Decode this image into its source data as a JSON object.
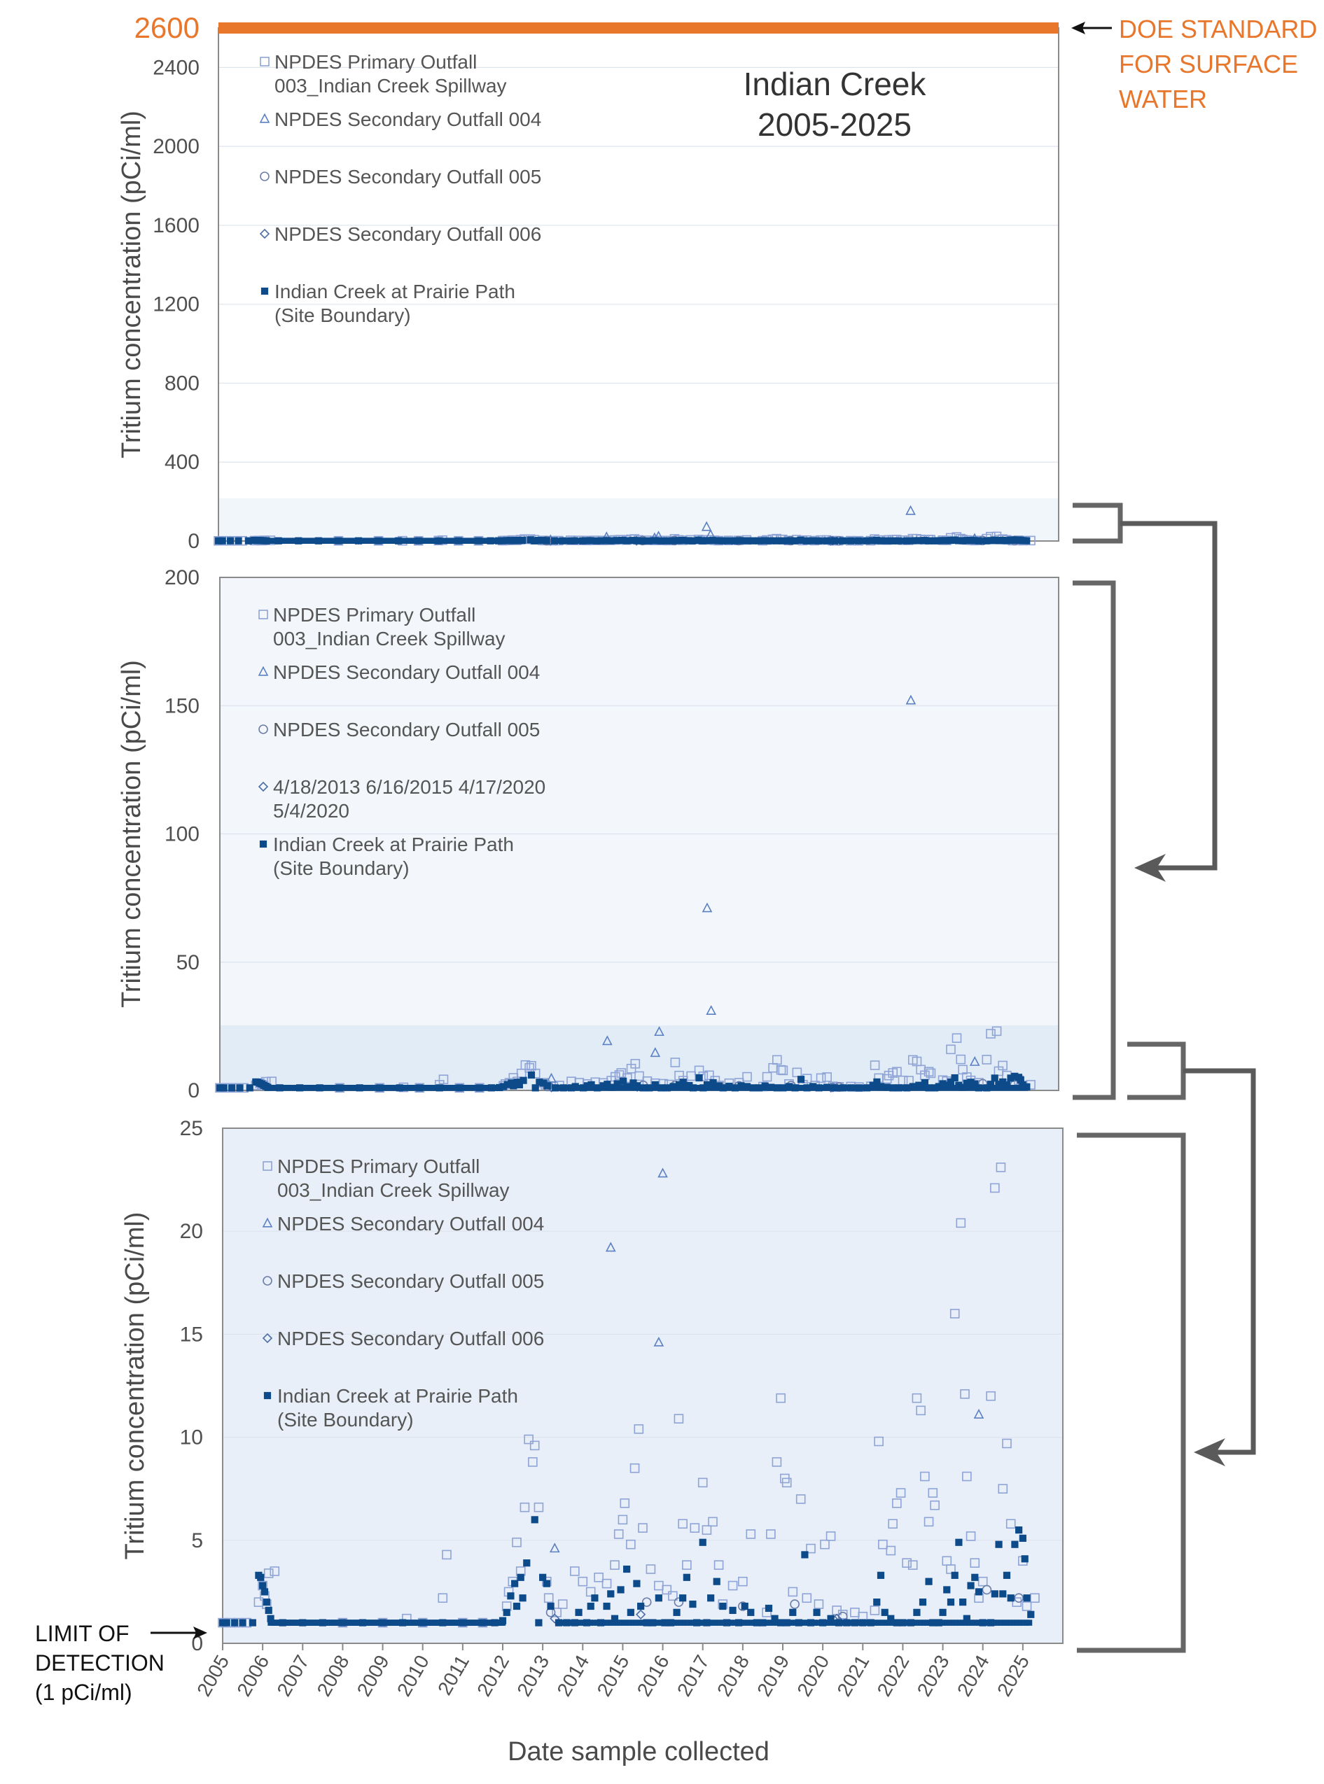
{
  "colors": {
    "standard_line": "#E8762B",
    "primary_outfall": "#8EA3D6",
    "outfall_004": "#5B80C2",
    "outfall_005": "#6B7DA8",
    "outfall_006": "#4C6CA8",
    "prairie_path": "#0D4A8A",
    "inset_fill": "#E8EFF8",
    "connector": "#5a5a5a"
  },
  "annotations": {
    "doe_standard": [
      "DOE STANDARD",
      "FOR SURFACE",
      "WATER"
    ],
    "limit_of_detection": [
      "LIMIT OF",
      "DETECTION",
      "(1 pCi/ml)"
    ]
  },
  "chart_data": [
    {
      "type": "scatter",
      "title_lines": [
        "Indian Creek",
        "2005-2025"
      ],
      "ylabel": "Tritium concentration (pCi/ml)",
      "ylim": [
        0,
        2600
      ],
      "yticks": [
        "0",
        "400",
        "800",
        "1200",
        "1600",
        "2000",
        "2400",
        "2600"
      ],
      "reference_line": {
        "value": 2600,
        "label": "2600"
      },
      "legend": [
        {
          "series": "primary",
          "lines": [
            "NPDES Primary Outfall",
            "003_Indian Creek Spillway"
          ]
        },
        {
          "series": "o004",
          "lines": [
            "NPDES Secondary Outfall 004"
          ]
        },
        {
          "series": "o005",
          "lines": [
            "NPDES Secondary Outfall 005"
          ]
        },
        {
          "series": "o006",
          "lines": [
            "NPDES Secondary Outfall 006"
          ]
        },
        {
          "series": "prairie",
          "lines": [
            "Indian Creek at Prairie Path",
            "(Site Boundary)"
          ]
        }
      ]
    },
    {
      "type": "scatter",
      "ylabel": "Tritium concentration (pCi/ml)",
      "ylim": [
        0,
        200
      ],
      "yticks": [
        "0",
        "50",
        "100",
        "150",
        "200"
      ],
      "legend": [
        {
          "series": "primary",
          "lines": [
            "NPDES Primary Outfall",
            "003_Indian Creek Spillway"
          ]
        },
        {
          "series": "o004",
          "lines": [
            "NPDES Secondary Outfall 004"
          ]
        },
        {
          "series": "o005",
          "lines": [
            "NPDES Secondary Outfall 005"
          ]
        },
        {
          "series": "o006",
          "lines": [
            "4/18/2013 6/16/2015 4/17/2020",
            "5/4/2020"
          ]
        },
        {
          "series": "prairie",
          "lines": [
            "Indian Creek at Prairie Path",
            "(Site Boundary)"
          ]
        }
      ]
    },
    {
      "type": "scatter",
      "ylabel": "Tritium concentration (pCi/ml)",
      "xlabel": "Date sample collected",
      "ylim": [
        0,
        25
      ],
      "yticks": [
        "0",
        "5",
        "10",
        "15",
        "20",
        "25"
      ],
      "xlim": [
        2005,
        2026
      ],
      "xticks": [
        "2005",
        "2006",
        "2007",
        "2008",
        "2009",
        "2010",
        "2011",
        "2012",
        "2013",
        "2014",
        "2015",
        "2016",
        "2017",
        "2018",
        "2019",
        "2020",
        "2021",
        "2022",
        "2023",
        "2024",
        "2025"
      ],
      "legend": [
        {
          "series": "primary",
          "lines": [
            "NPDES Primary Outfall",
            "003_Indian Creek Spillway"
          ]
        },
        {
          "series": "o004",
          "lines": [
            "NPDES Secondary Outfall 004"
          ]
        },
        {
          "series": "o005",
          "lines": [
            "NPDES Secondary Outfall 005"
          ]
        },
        {
          "series": "o006",
          "lines": [
            "NPDES Secondary Outfall 006"
          ]
        },
        {
          "series": "prairie",
          "lines": [
            "Indian Creek at Prairie Path",
            "(Site Boundary)"
          ]
        }
      ]
    }
  ],
  "series": {
    "o004": [
      [
        2013.3,
        4.6
      ],
      [
        2014.7,
        19.2
      ],
      [
        2015.9,
        14.6
      ],
      [
        2016.0,
        22.8
      ],
      [
        2017.2,
        71
      ],
      [
        2017.3,
        31
      ],
      [
        2022.3,
        152
      ],
      [
        2023.9,
        11.1
      ]
    ],
    "o005": [
      [
        2013.2,
        1.5
      ],
      [
        2015.6,
        2.0
      ],
      [
        2016.4,
        2.0
      ],
      [
        2018.0,
        1.8
      ],
      [
        2019.3,
        1.9
      ],
      [
        2020.5,
        1.3
      ],
      [
        2024.1,
        2.6
      ],
      [
        2024.9,
        2.2
      ]
    ],
    "o006": [
      [
        2013.3,
        1.2
      ],
      [
        2015.45,
        1.4
      ],
      [
        2020.3,
        1.1
      ],
      [
        2020.35,
        1.2
      ]
    ],
    "primary": [
      [
        2005.0,
        1.0
      ],
      [
        2005.2,
        1.0
      ],
      [
        2005.4,
        1.0
      ],
      [
        2005.6,
        1.0
      ],
      [
        2005.9,
        2.0
      ],
      [
        2006.0,
        2.8
      ],
      [
        2006.05,
        2.3
      ],
      [
        2006.1,
        1.9
      ],
      [
        2006.15,
        3.4
      ],
      [
        2006.3,
        3.5
      ],
      [
        2008.0,
        1.0
      ],
      [
        2009.0,
        1.0
      ],
      [
        2009.6,
        1.2
      ],
      [
        2010.0,
        1.0
      ],
      [
        2010.5,
        2.2
      ],
      [
        2010.6,
        4.3
      ],
      [
        2011.0,
        1.0
      ],
      [
        2011.5,
        1.0
      ],
      [
        2012.1,
        1.8
      ],
      [
        2012.15,
        2.5
      ],
      [
        2012.25,
        3.0
      ],
      [
        2012.35,
        4.9
      ],
      [
        2012.45,
        3.5
      ],
      [
        2012.55,
        6.6
      ],
      [
        2012.65,
        9.9
      ],
      [
        2012.75,
        8.8
      ],
      [
        2012.8,
        9.6
      ],
      [
        2012.9,
        6.6
      ],
      [
        2013.1,
        3.0
      ],
      [
        2013.15,
        2.2
      ],
      [
        2013.35,
        1.5
      ],
      [
        2013.5,
        1.9
      ],
      [
        2013.8,
        3.5
      ],
      [
        2014.0,
        3.0
      ],
      [
        2014.2,
        2.5
      ],
      [
        2014.4,
        3.2
      ],
      [
        2014.6,
        2.9
      ],
      [
        2014.8,
        3.8
      ],
      [
        2014.9,
        5.3
      ],
      [
        2015.0,
        6.0
      ],
      [
        2015.05,
        6.8
      ],
      [
        2015.2,
        4.8
      ],
      [
        2015.3,
        8.5
      ],
      [
        2015.4,
        10.4
      ],
      [
        2015.5,
        5.6
      ],
      [
        2015.7,
        3.6
      ],
      [
        2015.9,
        2.8
      ],
      [
        2016.1,
        2.6
      ],
      [
        2016.25,
        2.3
      ],
      [
        2016.4,
        10.9
      ],
      [
        2016.5,
        5.8
      ],
      [
        2016.6,
        3.8
      ],
      [
        2016.8,
        5.6
      ],
      [
        2017.0,
        7.8
      ],
      [
        2017.1,
        5.5
      ],
      [
        2017.25,
        5.9
      ],
      [
        2017.4,
        3.8
      ],
      [
        2017.5,
        1.9
      ],
      [
        2017.75,
        2.8
      ],
      [
        2018.0,
        3.0
      ],
      [
        2018.2,
        5.3
      ],
      [
        2018.6,
        1.5
      ],
      [
        2018.7,
        5.3
      ],
      [
        2018.85,
        8.8
      ],
      [
        2018.95,
        11.9
      ],
      [
        2019.05,
        8.0
      ],
      [
        2019.1,
        7.8
      ],
      [
        2019.25,
        2.5
      ],
      [
        2019.45,
        7.0
      ],
      [
        2019.6,
        2.2
      ],
      [
        2019.7,
        4.6
      ],
      [
        2019.9,
        1.9
      ],
      [
        2020.05,
        4.8
      ],
      [
        2020.2,
        5.2
      ],
      [
        2020.35,
        1.6
      ],
      [
        2020.5,
        1.4
      ],
      [
        2020.8,
        1.5
      ],
      [
        2021.0,
        1.3
      ],
      [
        2021.3,
        1.6
      ],
      [
        2021.4,
        9.8
      ],
      [
        2021.5,
        4.8
      ],
      [
        2021.7,
        4.5
      ],
      [
        2021.75,
        5.8
      ],
      [
        2021.85,
        6.8
      ],
      [
        2021.95,
        7.3
      ],
      [
        2022.1,
        3.9
      ],
      [
        2022.25,
        3.8
      ],
      [
        2022.35,
        11.9
      ],
      [
        2022.45,
        11.3
      ],
      [
        2022.55,
        8.1
      ],
      [
        2022.65,
        5.9
      ],
      [
        2022.75,
        7.3
      ],
      [
        2022.8,
        6.7
      ],
      [
        2023.1,
        4.0
      ],
      [
        2023.2,
        3.6
      ],
      [
        2023.3,
        16.0
      ],
      [
        2023.45,
        20.4
      ],
      [
        2023.55,
        12.1
      ],
      [
        2023.6,
        8.1
      ],
      [
        2023.7,
        5.2
      ],
      [
        2023.8,
        3.9
      ],
      [
        2023.9,
        2.2
      ],
      [
        2024.0,
        3.0
      ],
      [
        2024.2,
        12.0
      ],
      [
        2024.3,
        22.1
      ],
      [
        2024.45,
        23.1
      ],
      [
        2024.5,
        7.5
      ],
      [
        2024.6,
        9.7
      ],
      [
        2024.7,
        5.8
      ],
      [
        2024.85,
        2.0
      ],
      [
        2025.0,
        4.0
      ],
      [
        2025.1,
        1.8
      ],
      [
        2025.3,
        2.2
      ]
    ],
    "prairie": [
      [
        2005.0,
        1.0
      ],
      [
        2005.1,
        1.0
      ],
      [
        2005.3,
        1.0
      ],
      [
        2005.5,
        1.0
      ],
      [
        2005.75,
        1.0
      ],
      [
        2005.9,
        3.3
      ],
      [
        2005.95,
        3.2
      ],
      [
        2006.0,
        2.8
      ],
      [
        2006.05,
        2.5
      ],
      [
        2006.1,
        2.0
      ],
      [
        2006.15,
        1.6
      ],
      [
        2006.2,
        1.2
      ],
      [
        2006.5,
        1.0
      ],
      [
        2007.0,
        1.0
      ],
      [
        2007.5,
        1.0
      ],
      [
        2008.0,
        1.0
      ],
      [
        2008.5,
        1.0
      ],
      [
        2009.0,
        1.0
      ],
      [
        2009.5,
        1.0
      ],
      [
        2010.0,
        1.0
      ],
      [
        2010.5,
        1.0
      ],
      [
        2011.0,
        1.0
      ],
      [
        2011.5,
        1.0
      ],
      [
        2011.8,
        1.0
      ],
      [
        2012.0,
        1.1
      ],
      [
        2012.1,
        1.5
      ],
      [
        2012.2,
        2.3
      ],
      [
        2012.3,
        2.9
      ],
      [
        2012.35,
        1.8
      ],
      [
        2012.45,
        3.2
      ],
      [
        2012.5,
        2.2
      ],
      [
        2012.6,
        3.9
      ],
      [
        2012.8,
        6.0
      ],
      [
        2012.9,
        1.0
      ],
      [
        2013.0,
        3.2
      ],
      [
        2013.1,
        2.9
      ],
      [
        2013.2,
        1.8
      ],
      [
        2013.4,
        1.0
      ],
      [
        2013.6,
        1.0
      ],
      [
        2013.8,
        1.0
      ],
      [
        2013.9,
        1.5
      ],
      [
        2014.1,
        1.0
      ],
      [
        2014.2,
        1.8
      ],
      [
        2014.3,
        2.2
      ],
      [
        2014.45,
        1.0
      ],
      [
        2014.6,
        1.8
      ],
      [
        2014.7,
        2.4
      ],
      [
        2014.8,
        1.2
      ],
      [
        2014.95,
        2.6
      ],
      [
        2015.1,
        3.6
      ],
      [
        2015.2,
        1.5
      ],
      [
        2015.35,
        2.9
      ],
      [
        2015.45,
        1.8
      ],
      [
        2015.6,
        1.0
      ],
      [
        2015.75,
        1.0
      ],
      [
        2015.9,
        2.2
      ],
      [
        2016.05,
        1.0
      ],
      [
        2016.2,
        1.0
      ],
      [
        2016.35,
        1.5
      ],
      [
        2016.5,
        2.2
      ],
      [
        2016.6,
        3.2
      ],
      [
        2016.75,
        1.9
      ],
      [
        2016.85,
        1.0
      ],
      [
        2017.0,
        4.9
      ],
      [
        2017.1,
        1.0
      ],
      [
        2017.2,
        2.2
      ],
      [
        2017.35,
        3.0
      ],
      [
        2017.5,
        1.8
      ],
      [
        2017.6,
        1.0
      ],
      [
        2017.75,
        1.6
      ],
      [
        2017.9,
        1.0
      ],
      [
        2018.05,
        1.8
      ],
      [
        2018.2,
        1.5
      ],
      [
        2018.35,
        1.0
      ],
      [
        2018.5,
        1.0
      ],
      [
        2018.65,
        1.7
      ],
      [
        2018.8,
        1.2
      ],
      [
        2018.95,
        1.0
      ],
      [
        2019.1,
        1.0
      ],
      [
        2019.25,
        1.5
      ],
      [
        2019.4,
        1.0
      ],
      [
        2019.55,
        4.3
      ],
      [
        2019.7,
        1.0
      ],
      [
        2019.85,
        1.5
      ],
      [
        2020.0,
        1.0
      ],
      [
        2020.2,
        1.2
      ],
      [
        2020.4,
        1.0
      ],
      [
        2020.6,
        1.0
      ],
      [
        2020.8,
        1.0
      ],
      [
        2021.0,
        1.0
      ],
      [
        2021.2,
        1.0
      ],
      [
        2021.35,
        2.0
      ],
      [
        2021.45,
        3.3
      ],
      [
        2021.55,
        1.5
      ],
      [
        2021.7,
        1.2
      ],
      [
        2021.85,
        1.0
      ],
      [
        2022.0,
        1.0
      ],
      [
        2022.2,
        1.0
      ],
      [
        2022.35,
        1.5
      ],
      [
        2022.5,
        2.0
      ],
      [
        2022.65,
        3.0
      ],
      [
        2022.75,
        1.0
      ],
      [
        2022.9,
        1.0
      ],
      [
        2023.0,
        1.5
      ],
      [
        2023.1,
        2.6
      ],
      [
        2023.2,
        2.0
      ],
      [
        2023.3,
        3.3
      ],
      [
        2023.4,
        4.9
      ],
      [
        2023.5,
        2.0
      ],
      [
        2023.6,
        1.2
      ],
      [
        2023.7,
        2.8
      ],
      [
        2023.8,
        3.2
      ],
      [
        2023.9,
        2.5
      ],
      [
        2024.0,
        1.0
      ],
      [
        2024.2,
        1.0
      ],
      [
        2024.3,
        2.4
      ],
      [
        2024.4,
        4.8
      ],
      [
        2024.5,
        2.4
      ],
      [
        2024.6,
        3.3
      ],
      [
        2024.7,
        2.2
      ],
      [
        2024.8,
        4.8
      ],
      [
        2024.9,
        5.5
      ],
      [
        2025.0,
        5.1
      ],
      [
        2025.05,
        4.1
      ],
      [
        2025.1,
        2.2
      ],
      [
        2025.2,
        1.4
      ]
    ]
  }
}
